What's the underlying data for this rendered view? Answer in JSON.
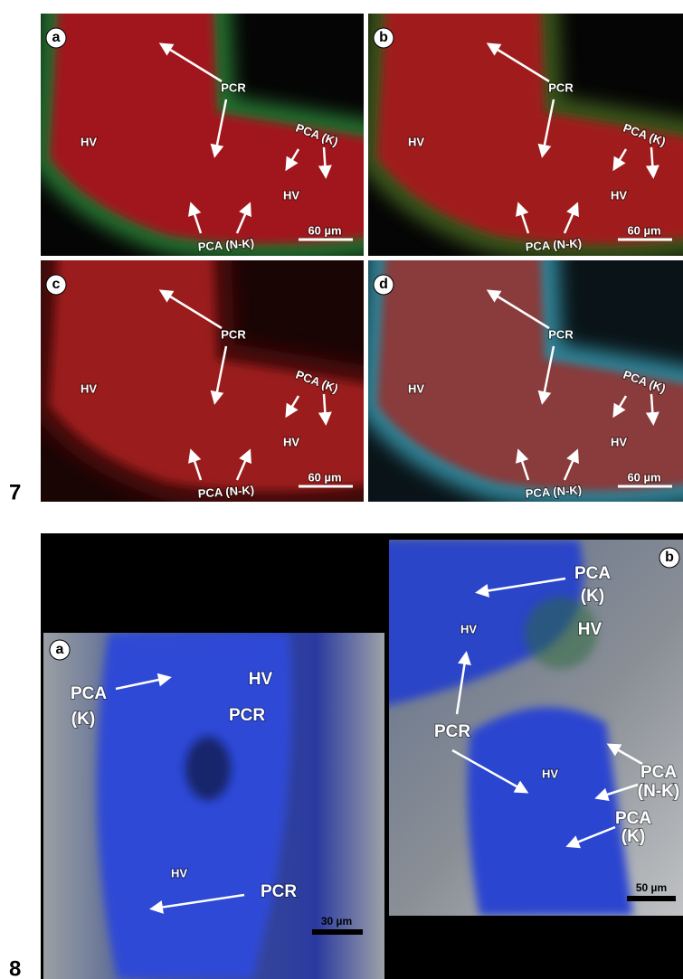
{
  "figures": [
    {
      "number": "7",
      "panels": [
        {
          "letter": "a",
          "labels": [
            "PCR",
            "PCA (K)",
            "HV",
            "HV",
            "PCA (N-K)",
            "60 µm"
          ]
        },
        {
          "letter": "b",
          "labels": [
            "PCR",
            "PCA (K)",
            "HV",
            "HV",
            "PCA (N-K)",
            "60 µm"
          ]
        },
        {
          "letter": "c",
          "labels": [
            "PCR",
            "PCA (K)",
            "HV",
            "HV",
            "PCA (N-K)",
            "60 µm"
          ]
        },
        {
          "letter": "d",
          "labels": [
            "PCR",
            "PCA (K)",
            "HV",
            "HV",
            "PCA (N-K)",
            "60 µm"
          ]
        }
      ]
    },
    {
      "number": "8",
      "panels": [
        {
          "letter": "a",
          "labels": [
            "HV",
            "PCR",
            "PCA",
            "(K)",
            "HV",
            "PCR",
            "30 µm"
          ]
        },
        {
          "letter": "b",
          "labels": [
            "PCA",
            "(K)",
            "HV",
            "HV",
            "PCR",
            "HV",
            "PCA",
            "(N-K)",
            "PCA",
            "(K)",
            "50 µm"
          ]
        }
      ]
    }
  ]
}
